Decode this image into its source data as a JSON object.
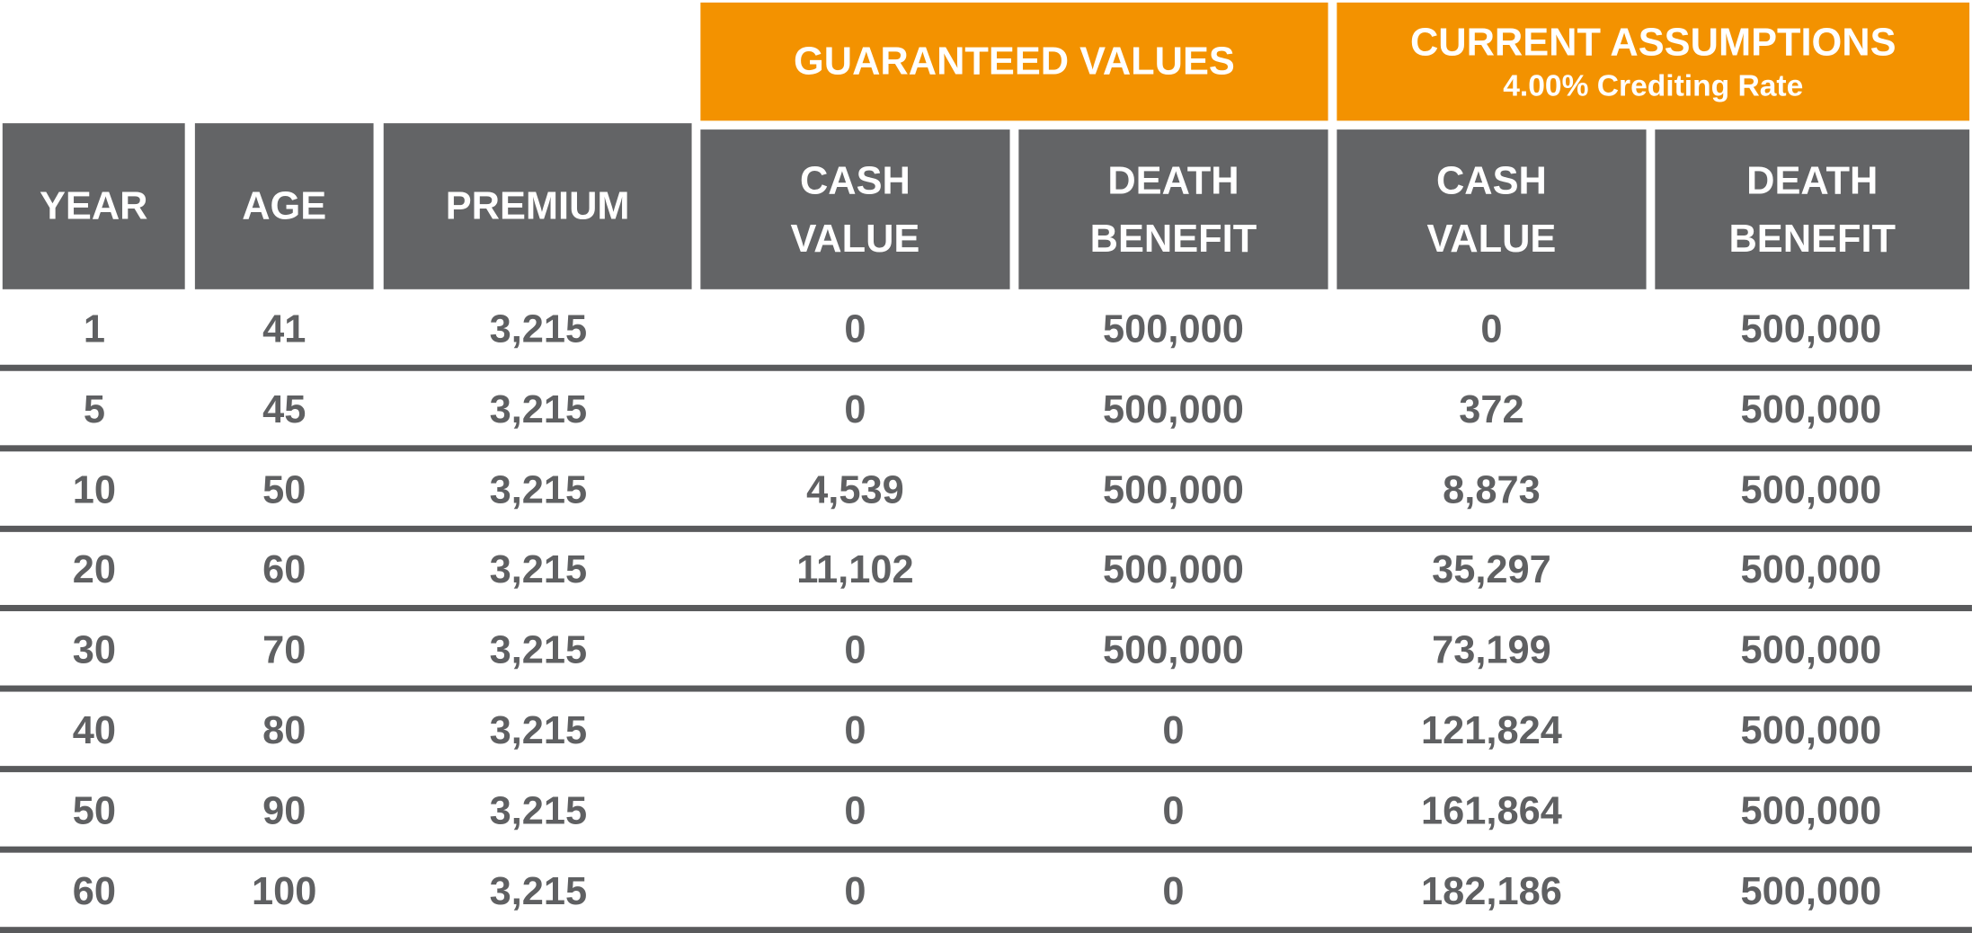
{
  "header": {
    "groups": [
      {
        "title": "GUARANTEED VALUES"
      },
      {
        "title": "CURRENT ASSUMPTIONS",
        "subtitle": "4.00% Crediting Rate"
      }
    ],
    "columns": [
      "YEAR",
      "AGE",
      "PREMIUM",
      "CASH VALUE",
      "DEATH BENEFIT",
      "CASH VALUE",
      "DEATH BENEFIT"
    ]
  },
  "table": {
    "rows": [
      [
        "1",
        "41",
        "3,215",
        "0",
        "500,000",
        "0",
        "500,000"
      ],
      [
        "5",
        "45",
        "3,215",
        "0",
        "500,000",
        "372",
        "500,000"
      ],
      [
        "10",
        "50",
        "3,215",
        "4,539",
        "500,000",
        "8,873",
        "500,000"
      ],
      [
        "20",
        "60",
        "3,215",
        "11,102",
        "500,000",
        "35,297",
        "500,000"
      ],
      [
        "30",
        "70",
        "3,215",
        "0",
        "500,000",
        "73,199",
        "500,000"
      ],
      [
        "40",
        "80",
        "3,215",
        "0",
        "0",
        "121,824",
        "500,000"
      ],
      [
        "50",
        "90",
        "3,215",
        "0",
        "0",
        "161,864",
        "500,000"
      ],
      [
        "60",
        "100",
        "3,215",
        "0",
        "0",
        "182,186",
        "500,000"
      ]
    ]
  }
}
